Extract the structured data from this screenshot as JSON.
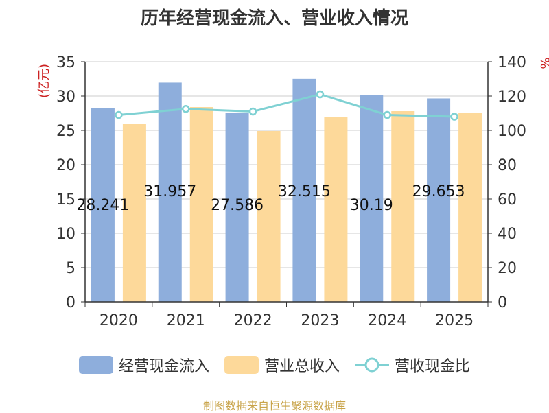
{
  "title": "历年经营现金流入、营业收入情况",
  "source": "制图数据来自恒生聚源数据库",
  "colors": {
    "cash": "#8eaedc",
    "revenue": "#fdd99a",
    "ratio": "#7fd1d3",
    "unit": "#cc2222",
    "axis": "#333333",
    "grid": "#cccccc"
  },
  "chart_data": {
    "type": "bar",
    "title": "历年经营现金流入、营业收入情况",
    "categories": [
      "2020",
      "2021",
      "2022",
      "2023",
      "2024",
      "2025"
    ],
    "ylabel": "(亿元)",
    "y2label": "%",
    "ylim": [
      0,
      35
    ],
    "y2lim": [
      0,
      140
    ],
    "yticks": [
      "0",
      "5",
      "10",
      "15",
      "20",
      "25",
      "30",
      "35"
    ],
    "y2ticks": [
      "0",
      "20",
      "40",
      "60",
      "80",
      "100",
      "120",
      "140"
    ],
    "series": [
      {
        "name": "经营现金流入",
        "type": "bar",
        "axis": "left",
        "values": [
          28.241,
          31.957,
          27.586,
          32.515,
          30.19,
          29.653
        ],
        "labels": [
          "28.241",
          "31.957",
          "27.586",
          "32.515",
          "30.19",
          "29.653"
        ]
      },
      {
        "name": "营业总收入",
        "type": "bar",
        "axis": "left",
        "values": [
          25.9,
          28.4,
          24.9,
          27.0,
          27.8,
          27.5
        ]
      },
      {
        "name": "营收现金比",
        "type": "line",
        "axis": "right",
        "values": [
          109,
          112.5,
          111,
          121,
          109,
          108
        ]
      }
    ],
    "legend_position": "bottom"
  }
}
